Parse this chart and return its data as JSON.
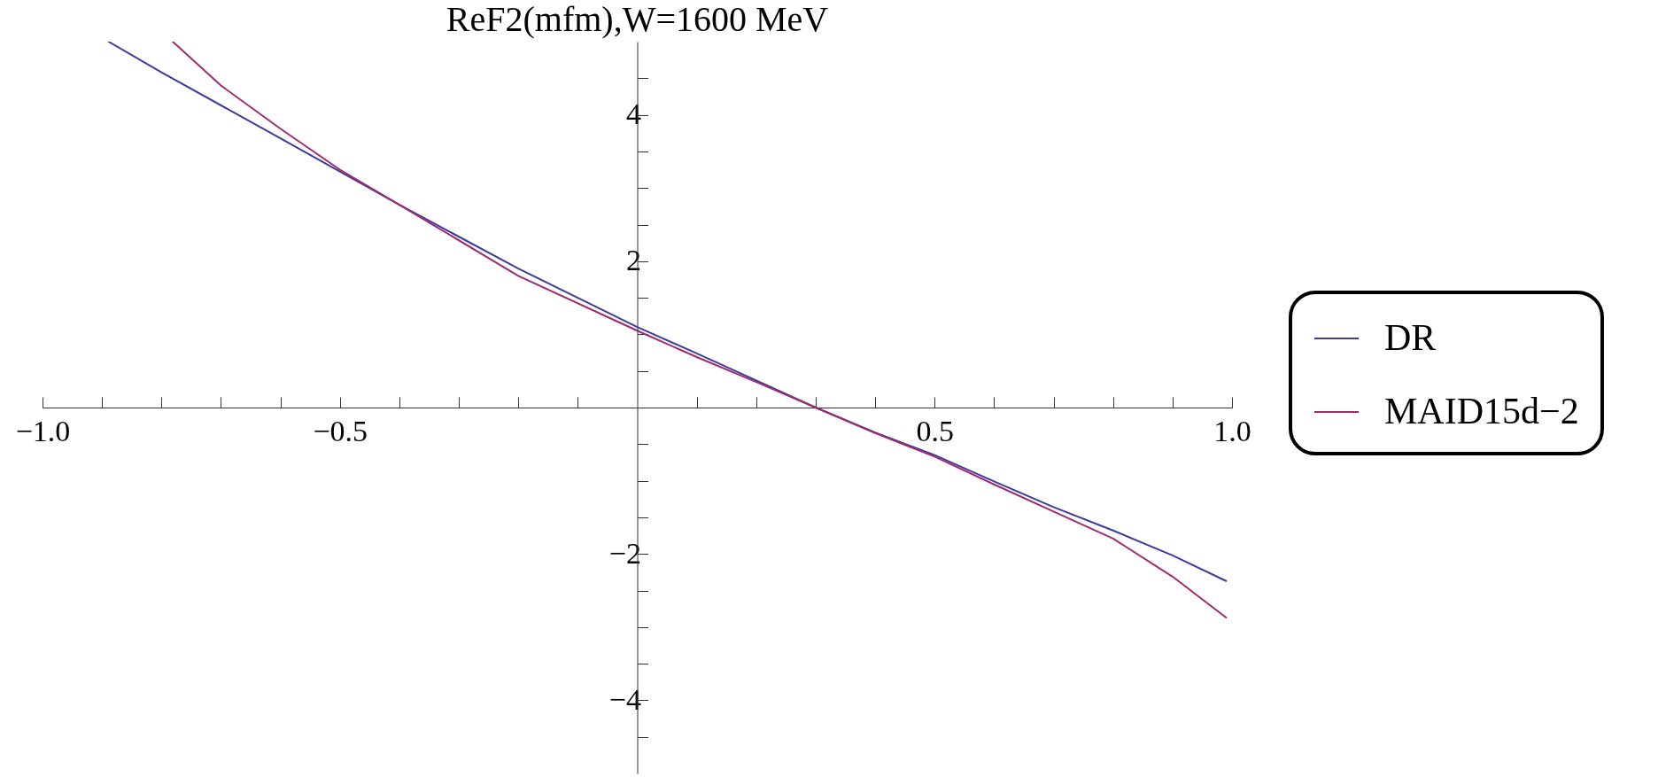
{
  "chart_data": {
    "type": "line",
    "title": "ReF2(mfm),W=1600 MeV",
    "series": [
      {
        "name": "DR",
        "color": "#3b3ba0",
        "x": [
          -0.889,
          -0.8,
          -0.6,
          -0.4,
          -0.2,
          0,
          0.1,
          0.2,
          0.3,
          0.4,
          0.5,
          0.6,
          0.7,
          0.8,
          0.9,
          0.99
        ],
        "values": [
          5,
          4.58,
          3.68,
          2.77,
          1.9,
          1.1,
          0.74,
          0.37,
          0,
          -0.34,
          -0.65,
          -1.01,
          -1.36,
          -1.68,
          -2.02,
          -2.37
        ]
      },
      {
        "name": "MAID15d−2",
        "color": "#9e2b6e",
        "x": [
          -0.781,
          -0.7,
          -0.6,
          -0.5,
          -0.4,
          -0.2,
          0,
          0.1,
          0.2,
          0.3,
          0.4,
          0.5,
          0.6,
          0.7,
          0.8,
          0.9,
          0.99
        ],
        "values": [
          5,
          4.4,
          3.81,
          3.25,
          2.77,
          1.8,
          1.05,
          0.69,
          0.35,
          0,
          -0.35,
          -0.67,
          -1.05,
          -1.42,
          -1.79,
          -2.31,
          -2.87
        ]
      }
    ],
    "xlim": [
      -1,
      1
    ],
    "xticks": [
      {
        "value": -1,
        "label": "−1.0"
      },
      {
        "value": -0.9,
        "label": null
      },
      {
        "value": -0.8,
        "label": null
      },
      {
        "value": -0.7,
        "label": null
      },
      {
        "value": -0.6,
        "label": null
      },
      {
        "value": -0.5,
        "label": "−0.5"
      },
      {
        "value": -0.4,
        "label": null
      },
      {
        "value": -0.3,
        "label": null
      },
      {
        "value": -0.2,
        "label": null
      },
      {
        "value": -0.1,
        "label": null
      },
      {
        "value": 0.1,
        "label": null
      },
      {
        "value": 0.2,
        "label": null
      },
      {
        "value": 0.3,
        "label": null
      },
      {
        "value": 0.4,
        "label": null
      },
      {
        "value": 0.5,
        "label": "0.5"
      },
      {
        "value": 0.6,
        "label": null
      },
      {
        "value": 0.7,
        "label": null
      },
      {
        "value": 0.8,
        "label": null
      },
      {
        "value": 0.9,
        "label": null
      },
      {
        "value": 1,
        "label": "1.0"
      }
    ],
    "ylim": [
      -5,
      5
    ],
    "yticks": [
      {
        "value": -4.5,
        "label": null
      },
      {
        "value": -4,
        "label": "−4"
      },
      {
        "value": -3.5,
        "label": null
      },
      {
        "value": -3,
        "label": null
      },
      {
        "value": -2.5,
        "label": null
      },
      {
        "value": -2,
        "label": "−2"
      },
      {
        "value": -1.5,
        "label": null
      },
      {
        "value": -1,
        "label": null
      },
      {
        "value": -0.5,
        "label": null
      },
      {
        "value": 0.5,
        "label": null
      },
      {
        "value": 1,
        "label": null
      },
      {
        "value": 1.5,
        "label": null
      },
      2,
      {
        "value": 2.5,
        "label": null
      },
      {
        "value": 3,
        "label": null
      },
      {
        "value": 3.5,
        "label": null
      },
      4,
      {
        "value": 4.5,
        "label": null
      }
    ],
    "grid": false,
    "legend": "right",
    "marker": "none",
    "line_style": "solid"
  }
}
